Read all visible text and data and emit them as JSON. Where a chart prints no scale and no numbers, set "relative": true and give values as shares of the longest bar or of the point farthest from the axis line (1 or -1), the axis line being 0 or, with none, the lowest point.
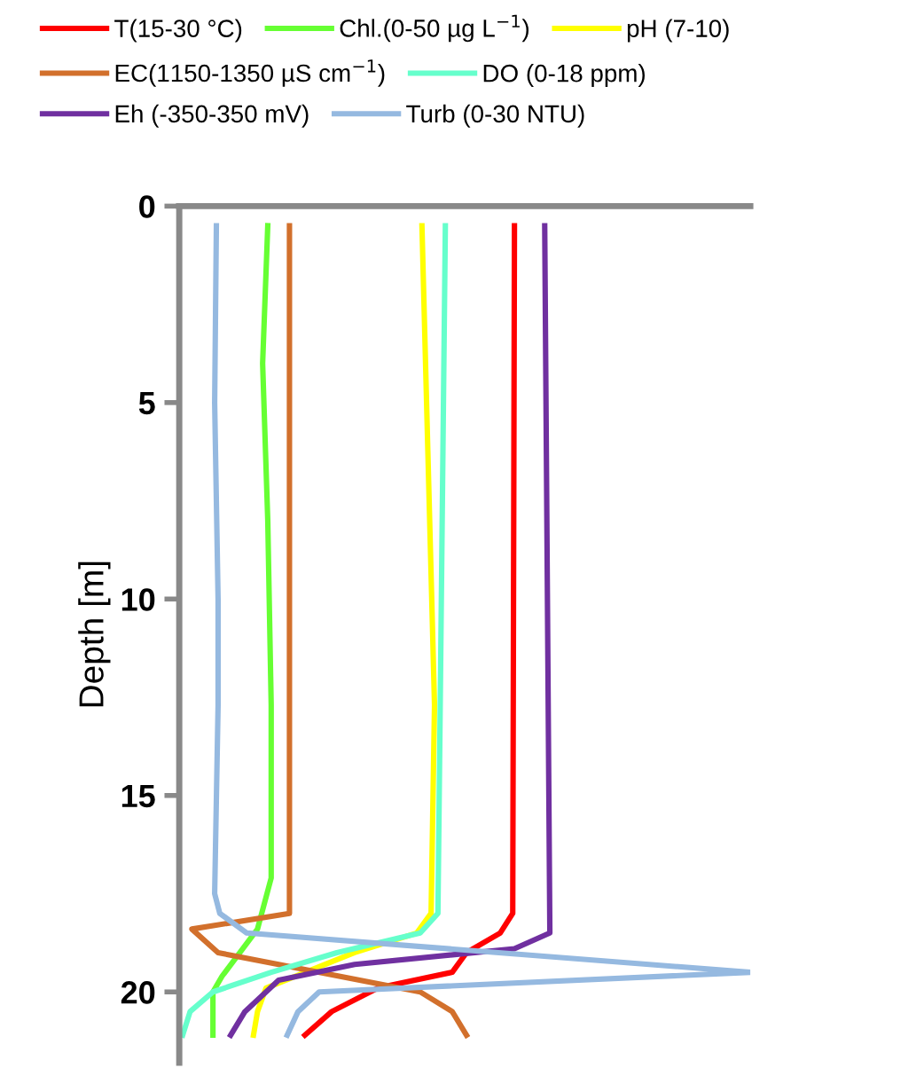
{
  "chart_data": {
    "type": "line",
    "orientation": "horizontal",
    "relative": true,
    "ylabel": "Depth [m]",
    "ylim": [
      21.8,
      0
    ],
    "yticks": [
      0,
      5,
      10,
      15,
      20
    ],
    "legend": "top",
    "marker": "none",
    "line_style": "solid",
    "grid": false,
    "tick_labels": "y",
    "series": [
      {
        "name": "T(15-30 °C)",
        "color": "#ff0000",
        "x": [
          0.5,
          18.0,
          18.5,
          19.0,
          19.5,
          19.9,
          20.5,
          21.1
        ],
        "values": [
          0.587,
          0.584,
          0.562,
          0.503,
          0.478,
          0.348,
          0.267,
          0.22
        ]
      },
      {
        "name": "Chl.(0-50 µg L$^{−1}$)",
        "color": "#66ff33",
        "x": [
          0.5,
          4,
          8,
          12.7,
          17.1,
          18.4,
          19.6,
          20.0,
          21.1
        ],
        "values": [
          0.155,
          0.146,
          0.155,
          0.161,
          0.161,
          0.137,
          0.075,
          0.059,
          0.059
        ]
      },
      {
        "name": "pH (7-10)",
        "color": "#ffff00",
        "x": [
          0.5,
          12.7,
          18.0,
          18.5,
          19.0,
          19.9,
          20.5,
          21.1
        ],
        "values": [
          0.425,
          0.447,
          0.441,
          0.416,
          0.307,
          0.152,
          0.137,
          0.13
        ]
      },
      {
        "name": "EC(1150-1350 µS cm$^{−1}$)",
        "color": "#d2702c",
        "x": [
          0.5,
          18.0,
          18.4,
          19.0,
          19.3,
          20.0,
          20.5,
          21.1
        ],
        "values": [
          0.193,
          0.193,
          0.022,
          0.068,
          0.174,
          0.422,
          0.478,
          0.503
        ]
      },
      {
        "name": "DO (0-18 ppm)",
        "color": "#66ffcc",
        "x": [
          0.5,
          12.7,
          18.0,
          18.5,
          19.0,
          19.5,
          20.0,
          20.5,
          21.1
        ],
        "values": [
          0.466,
          0.457,
          0.453,
          0.422,
          0.276,
          0.161,
          0.059,
          0.019,
          0.006
        ]
      },
      {
        "name": "Eh (-350-350 mV)",
        "color": "#7030a0",
        "x": [
          0.5,
          18.5,
          18.9,
          19.3,
          19.7,
          20.5,
          21.1
        ],
        "values": [
          0.64,
          0.649,
          0.587,
          0.307,
          0.174,
          0.115,
          0.09
        ]
      },
      {
        "name": "Turb (0-30 NTU)",
        "color": "#95b9e0",
        "x": [
          0.5,
          5,
          10,
          12.7,
          17.5,
          18.0,
          18.5,
          19.5,
          20.0,
          20.5,
          21.1
        ],
        "values": [
          0.065,
          0.062,
          0.068,
          0.068,
          0.062,
          0.071,
          0.118,
          1,
          0.245,
          0.208,
          0.189
        ]
      }
    ]
  }
}
